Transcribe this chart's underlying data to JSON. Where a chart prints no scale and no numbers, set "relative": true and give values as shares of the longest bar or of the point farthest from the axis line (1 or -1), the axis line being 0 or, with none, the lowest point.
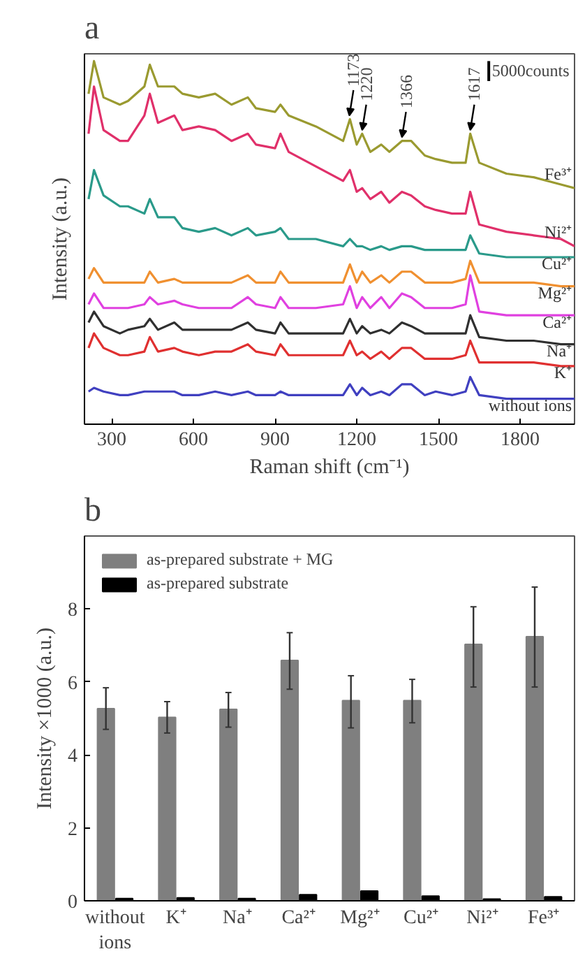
{
  "chart_data": [
    {
      "type": "line",
      "title": "a",
      "xlabel": "Raman shift (cm⁻¹)",
      "ylabel": "Intensity (a.u.)",
      "relative": true,
      "xlim": [
        200,
        2000
      ],
      "xticks": [
        300,
        600,
        900,
        1200,
        1500,
        1800
      ],
      "grid": false,
      "legend": false,
      "x": [
        215,
        235,
        270,
        330,
        360,
        420,
        440,
        470,
        530,
        560,
        620,
        680,
        740,
        800,
        830,
        900,
        920,
        950,
        1050,
        1150,
        1175,
        1200,
        1220,
        1250,
        1290,
        1320,
        1366,
        1400,
        1450,
        1490,
        1550,
        1600,
        1617,
        1650,
        1750,
        1850,
        1950,
        2000
      ],
      "series": [
        {
          "name": "Fe³⁺",
          "color": "#9a9a30",
          "values": [
            0.91,
            1.0,
            0.9,
            0.88,
            0.89,
            0.93,
            0.99,
            0.93,
            0.93,
            0.91,
            0.9,
            0.91,
            0.88,
            0.9,
            0.87,
            0.86,
            0.88,
            0.85,
            0.82,
            0.78,
            0.84,
            0.77,
            0.8,
            0.75,
            0.77,
            0.75,
            0.78,
            0.78,
            0.74,
            0.73,
            0.72,
            0.72,
            0.8,
            0.72,
            0.69,
            0.68,
            0.66,
            0.65
          ]
        },
        {
          "name": "Ni²⁺",
          "color": "#e0306a",
          "values": [
            0.8,
            0.93,
            0.81,
            0.78,
            0.78,
            0.85,
            0.91,
            0.83,
            0.85,
            0.81,
            0.82,
            0.81,
            0.78,
            0.8,
            0.77,
            0.76,
            0.8,
            0.75,
            0.71,
            0.67,
            0.7,
            0.64,
            0.65,
            0.62,
            0.64,
            0.61,
            0.64,
            0.63,
            0.6,
            0.59,
            0.58,
            0.58,
            0.64,
            0.55,
            0.53,
            0.52,
            0.51,
            0.49
          ]
        },
        {
          "name": "Cu²⁺",
          "color": "#2a9a8a",
          "values": [
            0.62,
            0.7,
            0.63,
            0.6,
            0.6,
            0.58,
            0.62,
            0.57,
            0.57,
            0.54,
            0.53,
            0.54,
            0.52,
            0.54,
            0.52,
            0.53,
            0.54,
            0.51,
            0.51,
            0.49,
            0.51,
            0.49,
            0.49,
            0.48,
            0.49,
            0.48,
            0.49,
            0.49,
            0.48,
            0.48,
            0.48,
            0.48,
            0.52,
            0.47,
            0.46,
            0.46,
            0.46,
            0.46
          ]
        },
        {
          "name": "Mg²⁺",
          "color": "#f09030",
          "values": [
            0.4,
            0.43,
            0.39,
            0.39,
            0.39,
            0.39,
            0.42,
            0.39,
            0.4,
            0.39,
            0.39,
            0.39,
            0.39,
            0.41,
            0.39,
            0.39,
            0.42,
            0.39,
            0.39,
            0.39,
            0.44,
            0.39,
            0.42,
            0.39,
            0.41,
            0.39,
            0.42,
            0.42,
            0.39,
            0.39,
            0.39,
            0.4,
            0.45,
            0.39,
            0.39,
            0.39,
            0.38,
            0.38
          ]
        },
        {
          "name": "Ca²⁺",
          "color": "#e040e0",
          "values": [
            0.33,
            0.36,
            0.32,
            0.32,
            0.32,
            0.33,
            0.35,
            0.33,
            0.34,
            0.33,
            0.32,
            0.32,
            0.32,
            0.35,
            0.33,
            0.32,
            0.35,
            0.32,
            0.32,
            0.33,
            0.38,
            0.32,
            0.35,
            0.32,
            0.35,
            0.32,
            0.36,
            0.35,
            0.32,
            0.32,
            0.32,
            0.33,
            0.41,
            0.31,
            0.3,
            0.3,
            0.3,
            0.3
          ]
        },
        {
          "name": "Na⁺",
          "color": "#303030",
          "values": [
            0.28,
            0.31,
            0.27,
            0.25,
            0.26,
            0.27,
            0.29,
            0.26,
            0.28,
            0.26,
            0.26,
            0.26,
            0.26,
            0.28,
            0.26,
            0.25,
            0.28,
            0.25,
            0.25,
            0.25,
            0.29,
            0.25,
            0.27,
            0.25,
            0.26,
            0.25,
            0.28,
            0.27,
            0.25,
            0.25,
            0.25,
            0.25,
            0.3,
            0.24,
            0.23,
            0.23,
            0.22,
            0.22
          ]
        },
        {
          "name": "K⁺",
          "color": "#e03030",
          "values": [
            0.21,
            0.25,
            0.21,
            0.19,
            0.19,
            0.2,
            0.24,
            0.2,
            0.21,
            0.2,
            0.19,
            0.2,
            0.2,
            0.22,
            0.2,
            0.19,
            0.22,
            0.19,
            0.19,
            0.19,
            0.23,
            0.19,
            0.2,
            0.18,
            0.2,
            0.18,
            0.21,
            0.21,
            0.18,
            0.18,
            0.18,
            0.19,
            0.23,
            0.17,
            0.17,
            0.17,
            0.16,
            0.16
          ]
        },
        {
          "name": "without ions",
          "color": "#4040c0",
          "values": [
            0.09,
            0.1,
            0.09,
            0.08,
            0.08,
            0.09,
            0.09,
            0.09,
            0.09,
            0.08,
            0.08,
            0.09,
            0.08,
            0.09,
            0.08,
            0.08,
            0.09,
            0.08,
            0.08,
            0.08,
            0.11,
            0.08,
            0.1,
            0.08,
            0.09,
            0.08,
            0.11,
            0.11,
            0.08,
            0.09,
            0.08,
            0.09,
            0.13,
            0.08,
            0.07,
            0.07,
            0.07,
            0.07
          ]
        }
      ],
      "annotations": [
        {
          "text": "1173",
          "x": 1173,
          "y": 0.84
        },
        {
          "text": "1220",
          "x": 1220,
          "y": 0.8
        },
        {
          "text": "1366",
          "x": 1366,
          "y": 0.78
        },
        {
          "text": "1617",
          "x": 1617,
          "y": 0.8
        },
        "5000counts"
      ]
    },
    {
      "type": "bar",
      "title": "b",
      "ylabel": "Intensity ×1000 (a.u.)",
      "categories": [
        "without ions",
        "K⁺",
        "Na⁺",
        "Ca²⁺",
        "Mg²⁺",
        "Cu²⁺",
        "Ni²⁺",
        "Fe³⁺"
      ],
      "ylim": [
        0,
        10
      ],
      "yticks": [
        0,
        2,
        4,
        6,
        8
      ],
      "grid": false,
      "legend": "top left",
      "series": [
        {
          "name": "as-prepared substrate + MG",
          "color": "#7f7f7f",
          "values": [
            5.27,
            5.03,
            5.25,
            6.59,
            5.49,
            5.49,
            7.03,
            7.24
          ],
          "errors": [
            [
              4.7,
              5.84
            ],
            [
              4.6,
              5.46
            ],
            [
              4.76,
              5.71
            ],
            [
              5.8,
              7.35
            ],
            [
              4.74,
              6.17
            ],
            [
              4.88,
              6.07
            ],
            [
              5.86,
              8.06
            ],
            [
              5.86,
              8.6
            ]
          ]
        },
        {
          "name": "as-prepared substrate",
          "color": "#000000",
          "values": [
            0.06,
            0.08,
            0.06,
            0.17,
            0.27,
            0.13,
            0.05,
            0.11
          ]
        }
      ]
    }
  ]
}
